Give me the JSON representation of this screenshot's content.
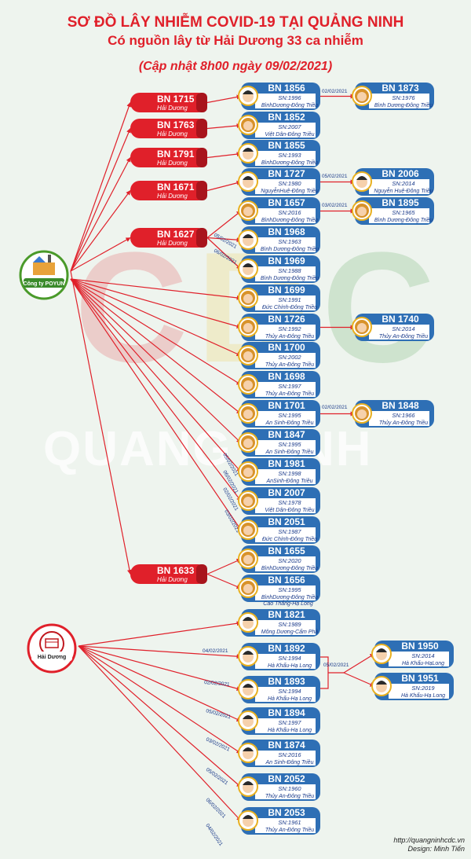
{
  "title": "SƠ ĐỒ LÂY NHIỄM COVID-19 TẠI QUẢNG NINH",
  "subtitle": "Có nguồn lây từ Hải Dương 33 ca nhiễm",
  "updated": "(Cập nhật 8h00 ngày 09/02/2021)",
  "credit": {
    "url": "http://quangninhcdc.vn",
    "design": "Design: Minh Tiến"
  },
  "watermark": {
    "letters": "CDC",
    "word": "QUANG NINH"
  },
  "colors": {
    "red": "#e0202a",
    "blue": "#2e6fb5",
    "arrow": "#e0202a",
    "bg": "#eef4ee"
  },
  "sources": [
    {
      "id": "poyun",
      "label": "Công ty POYUN",
      "icon": "factory-logo-icon"
    },
    {
      "id": "haiduong",
      "label": "Hải Dương",
      "icon": "haiduong-seal-icon"
    }
  ],
  "red_nodes": [
    {
      "id": "BN 1715",
      "place": "Hải Dương"
    },
    {
      "id": "BN 1763",
      "place": "Hải Dương"
    },
    {
      "id": "BN 1791",
      "place": "Hải Dương"
    },
    {
      "id": "BN 1671",
      "place": "Hải Dương"
    },
    {
      "id": "BN 1627",
      "place": "Hải Dương"
    },
    {
      "id": "BN 1633",
      "place": "Hải Dương"
    }
  ],
  "patients": [
    {
      "id": "BN 1856",
      "sn": "SN:1996",
      "place": "BìnhDương-Đông Triều",
      "g": "m"
    },
    {
      "id": "BN 1852",
      "sn": "SN:2007",
      "place": "Việt Dân-Đông Triều",
      "g": "f"
    },
    {
      "id": "BN 1855",
      "sn": "SN:1993",
      "place": "BìnhDương-Đông Triều",
      "g": "m"
    },
    {
      "id": "BN 1727",
      "sn": "SN:1980",
      "place": "NguyễnHuệ-Đông Triều",
      "g": "m"
    },
    {
      "id": "BN 1657",
      "sn": "SN:2016",
      "place": "BìnhDương-Đông Triều",
      "g": "f"
    },
    {
      "id": "BN 1968",
      "sn": "SN:1963",
      "place": "Bình Dương-Đông Triều",
      "g": "m"
    },
    {
      "id": "BN 1969",
      "sn": "SN:1988",
      "place": "Bình Dương-Đông Triều",
      "g": "m"
    },
    {
      "id": "BN 1699",
      "sn": "SN:1991",
      "place": "Đức Chính-Đông Triều",
      "g": "f"
    },
    {
      "id": "BN 1726",
      "sn": "SN:1992",
      "place": "Thủy An-Đông Triều",
      "g": "f"
    },
    {
      "id": "BN 1700",
      "sn": "SN:2002",
      "place": "Thủy An-Đông Triều",
      "g": "f"
    },
    {
      "id": "BN 1698",
      "sn": "SN:1997",
      "place": "Thủy An-Đông Triều",
      "g": "f"
    },
    {
      "id": "BN 1701",
      "sn": "SN:1995",
      "place": "An Sinh-Đông Triều",
      "g": "f"
    },
    {
      "id": "BN 1847",
      "sn": "SN:1995",
      "place": "An Sinh-Đông Triều",
      "g": "f"
    },
    {
      "id": "BN 1981",
      "sn": "SN:1998",
      "place": "AnSinh-Đông Triều",
      "g": "f"
    },
    {
      "id": "BN 2007",
      "sn": "SN:1978",
      "place": "Việt Dân-Đông Triều",
      "g": "f"
    },
    {
      "id": "BN 2051",
      "sn": "SN:1987",
      "place": "Đức Chính-Đông Triều",
      "g": "f"
    },
    {
      "id": "BN 1655",
      "sn": "SN:2020",
      "place": "BìnhDương-Đông Triều",
      "g": "f"
    },
    {
      "id": "BN 1656",
      "sn": "SN:1995",
      "place": "BìnhDương-Đông Triều",
      "place2": "Cao Thắng-Hạ Long",
      "g": "f"
    },
    {
      "id": "BN 1821",
      "sn": "SN:1989",
      "place": "Mông Dương-Cẩm Phả",
      "g": "m"
    },
    {
      "id": "BN 1892",
      "sn": "SN:1994",
      "place": "Hà Khẩu-Hạ Long",
      "g": "m"
    },
    {
      "id": "BN 1893",
      "sn": "SN:1994",
      "place": "Hà Khẩu-Hạ Long",
      "g": "m"
    },
    {
      "id": "BN 1894",
      "sn": "SN:1997",
      "place": "Hà Khẩu-Hạ Long",
      "g": "m"
    },
    {
      "id": "BN 1874",
      "sn": "SN:2016",
      "place": "An Sinh-Đông Triều",
      "g": "m"
    },
    {
      "id": "BN 2052",
      "sn": "SN:1960",
      "place": "Thủy An-Đông Triều",
      "g": "m"
    },
    {
      "id": "BN 2053",
      "sn": "SN:1961",
      "place": "Thủy An-Đông Triều",
      "g": "m"
    }
  ],
  "secondary": [
    {
      "id": "BN 1873",
      "sn": "SN:1976",
      "place": "Bình Dương-Đông Triều",
      "g": "f"
    },
    {
      "id": "BN 2006",
      "sn": "SN:2014",
      "place": "Nguyễn Huệ-Đông Triều",
      "g": "m"
    },
    {
      "id": "BN 1895",
      "sn": "SN:1965",
      "place": "Bình Dương-Đông Triều",
      "g": "f"
    },
    {
      "id": "BN 1740",
      "sn": "SN:2014",
      "place": "Thủy An-Đông Triều",
      "g": "f"
    },
    {
      "id": "BN 1848",
      "sn": "SN:1966",
      "place": "Thủy An-Đông Triều",
      "g": "f"
    },
    {
      "id": "BN 1950",
      "sn": "SN:2014",
      "place": "Hà Khẩu-HạLong",
      "g": "m"
    },
    {
      "id": "BN 1951",
      "sn": "SN:2019",
      "place": "Hà Khẩu-Hạ Long",
      "g": "m"
    }
  ],
  "edge_dates": [
    "02/02/2021",
    "05/02/2021",
    "03/02/2021",
    "02/02/2021",
    "05/02/2021",
    "05/02/2021",
    "06/02/2021",
    "05/02/2021",
    "06/02/2021",
    "02/02/2021",
    "03/02/2021",
    "04/02/2021",
    "02/02/2021",
    "05/02/2021",
    "03/02/2021",
    "05/02/2021",
    "06/02/2021",
    "04/02/2021"
  ]
}
